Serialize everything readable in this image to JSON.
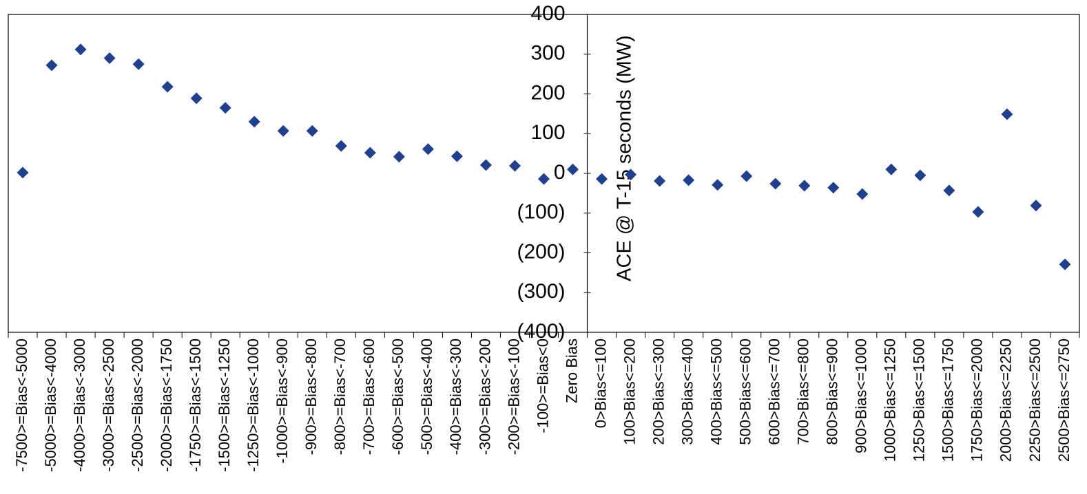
{
  "chart_data": {
    "type": "scatter",
    "y_label": "ACE @ T-15 seconds  (MW)",
    "categories": [
      "-7500>=Bias<-5000",
      "-5000>=Bias<-4000",
      "-4000>=Bias<-3000",
      "-3000>=Bias<-2500",
      "-2500>=Bias<-2000",
      "-2000>=Bias<-1750",
      "-1750>=Bias<-1500",
      "-1500>=Bias<-1250",
      "-1250>=Bias<-1000",
      "-1000>=Bias<-900",
      "-900>=Bias<-800",
      "-800>=Bias<-700",
      "-700>=Bias<-600",
      "-600>=Bias<-500",
      "-500>=Bias<-400",
      "-400>=Bias<-300",
      "-300>=Bias<-200",
      "-200>=Bias<-100",
      "-100>=Bias<0",
      "Zero Bias",
      "0>Bias<=100",
      "100>Bias<=200",
      "200>Bias<=300",
      "300>Bias<=400",
      "400>Bias<=500",
      "500>Bias<=600",
      "600>Bias<=700",
      "700>Bias<=800",
      "800>Bias<=900",
      "900>Bias<=1000",
      "1000>Bias<=1250",
      "1250>Bias<=1500",
      "1500>Bias<=1750",
      "1750>Bias<=2000",
      "2000>Bias<=2250",
      "2250>Bias<=2500",
      "2500>Bias<=2750"
    ],
    "values": [
      2,
      272,
      312,
      290,
      275,
      218,
      189,
      165,
      130,
      107,
      107,
      69,
      52,
      42,
      61,
      43,
      21,
      19,
      -14,
      10,
      -14,
      -3,
      -19,
      -17,
      -29,
      -7,
      -26,
      -31,
      -36,
      -52,
      10,
      -5,
      -43,
      -97,
      149,
      -81,
      -229
    ],
    "color": "#1f3f8f",
    "ylim": [
      -400,
      400
    ],
    "yticks": [
      {
        "value": -400,
        "label": "(400)"
      },
      {
        "value": -300,
        "label": "(300)"
      },
      {
        "value": -200,
        "label": "(200)"
      },
      {
        "value": -100,
        "label": "(100)"
      },
      0,
      100,
      200,
      300,
      400
    ],
    "grid": false
  }
}
